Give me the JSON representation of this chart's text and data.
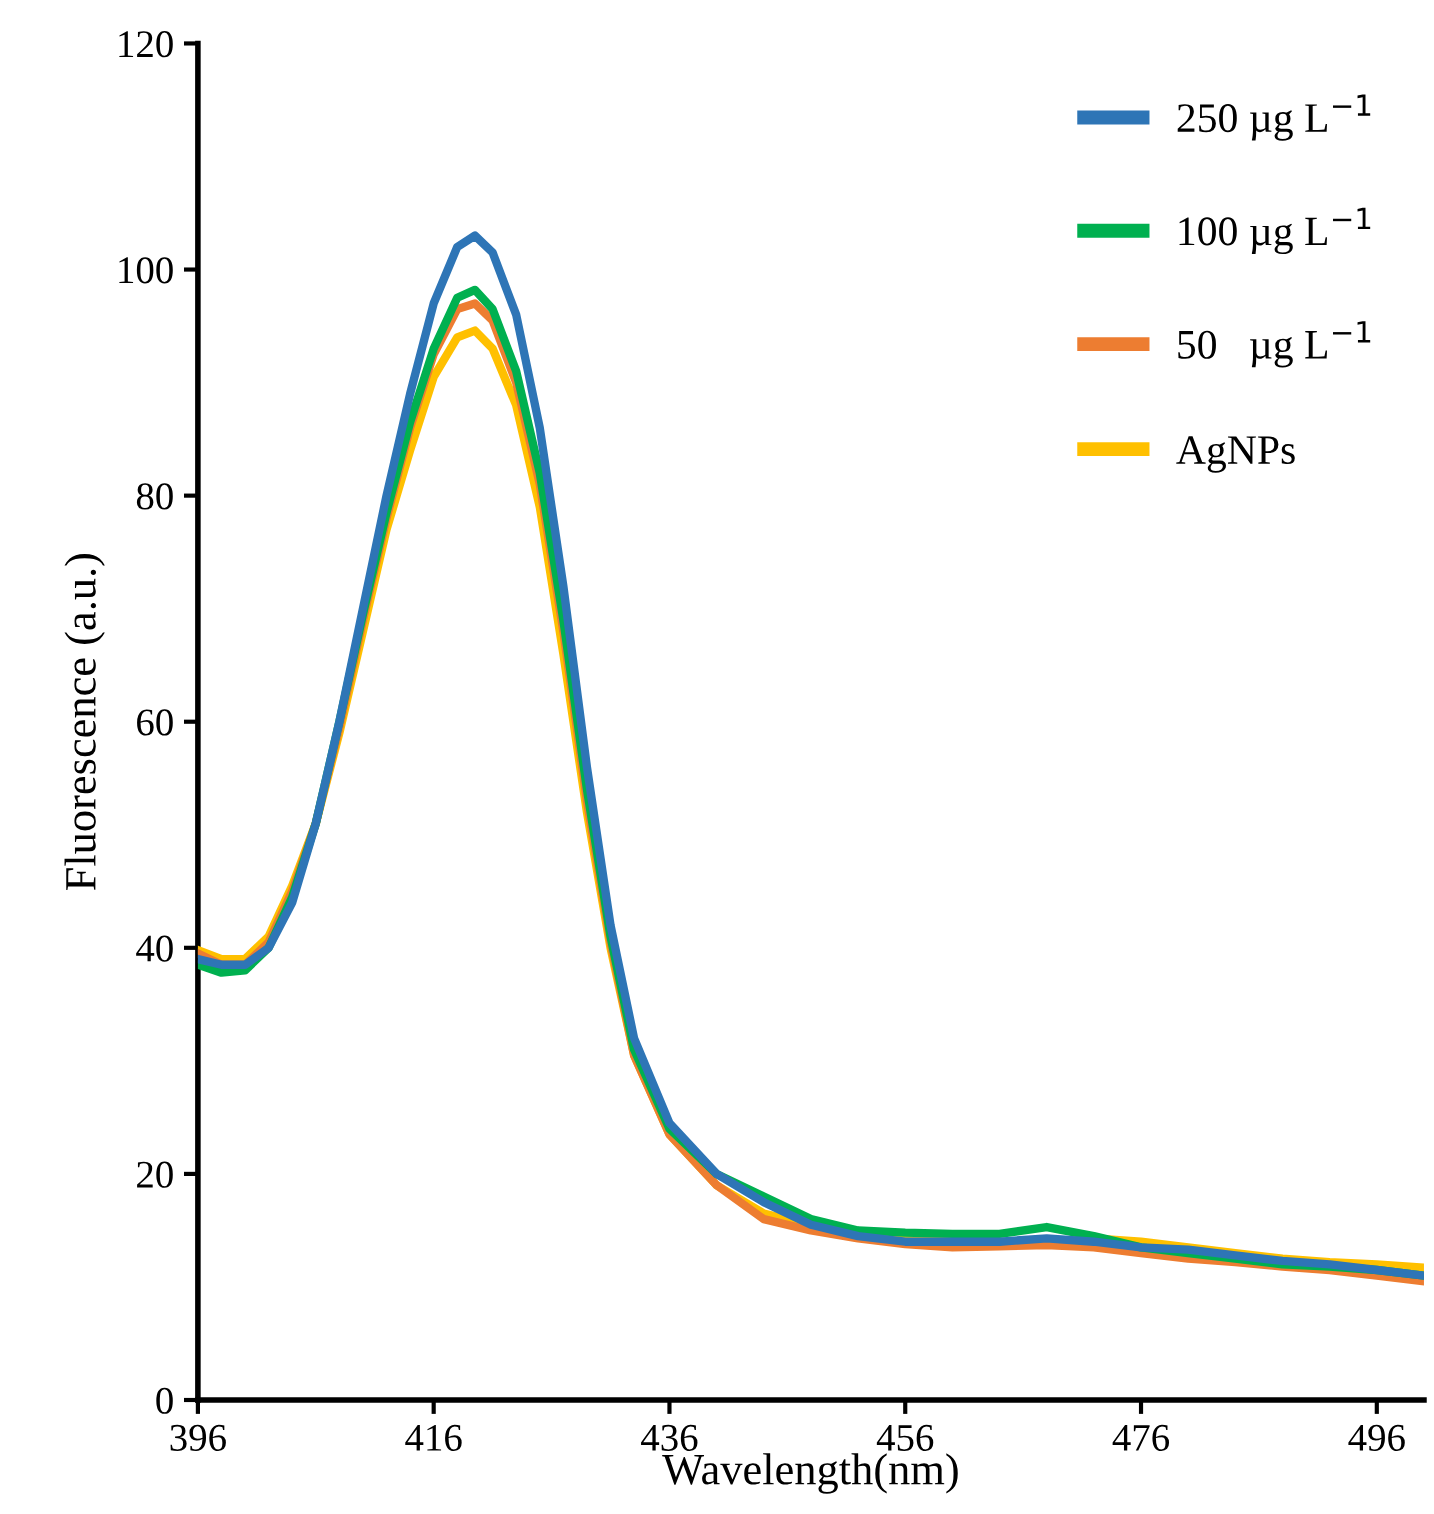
{
  "chart_data": {
    "type": "line",
    "xlabel": "Wavelength(nm)",
    "ylabel": "Fluorescence (a.u.)",
    "x": [
      396,
      398,
      400,
      402,
      404,
      406,
      408,
      410,
      412,
      414,
      416,
      418,
      419.5,
      421,
      423,
      425,
      427,
      429,
      431,
      433,
      436,
      440,
      444,
      448,
      452,
      456,
      460,
      464,
      468,
      472,
      476,
      480,
      484,
      488,
      492,
      496,
      500
    ],
    "series": [
      {
        "name": "250 µg L$^{−1}$",
        "color": "#2e75b6",
        "values": [
          39,
          38.5,
          38.5,
          40,
          44,
          51,
          60,
          70,
          80,
          89,
          97,
          102,
          103,
          101.5,
          96,
          86,
          72,
          56,
          42,
          32,
          24.5,
          20,
          17.5,
          15.5,
          14.5,
          14,
          14,
          14,
          14.3,
          14,
          13.5,
          13.3,
          12.8,
          12.3,
          12,
          11.5,
          11
        ]
      },
      {
        "name": "100 µg L$^{−1}$",
        "color": "#00b050",
        "values": [
          38.5,
          37.8,
          38,
          40,
          44.5,
          51,
          60,
          69.5,
          78.5,
          86.5,
          93,
          97.5,
          98.2,
          96.5,
          91,
          82,
          69,
          54,
          41,
          31,
          24,
          20,
          18,
          16,
          15,
          14.8,
          14.7,
          14.7,
          15.3,
          14.5,
          13.5,
          13,
          12.5,
          12,
          11.8,
          11.5,
          11
        ]
      },
      {
        "name": "50   µg L$^{−1}$",
        "color": "#ed7d31",
        "values": [
          39.5,
          38.5,
          38.5,
          40.5,
          45,
          51,
          59.5,
          69,
          78,
          86,
          92.5,
          96.5,
          97,
          95.5,
          90,
          81,
          68,
          53,
          40.5,
          30.5,
          23.5,
          19,
          16,
          15,
          14.3,
          13.8,
          13.5,
          13.6,
          13.7,
          13.5,
          13,
          12.5,
          12.2,
          11.8,
          11.5,
          11,
          10.5
        ]
      },
      {
        "name": "AgNPs",
        "color": "#ffc000",
        "values": [
          39.8,
          39,
          39,
          41,
          45.5,
          51,
          59,
          68,
          77,
          84,
          90.5,
          94,
          94.6,
          93,
          88,
          79,
          66,
          52,
          40,
          30.5,
          23.5,
          19,
          16.5,
          15.5,
          14.8,
          14.4,
          14.2,
          14,
          14,
          14.3,
          14,
          13.5,
          13,
          12.5,
          12.2,
          12,
          11.7
        ]
      }
    ],
    "xlim": [
      396,
      500
    ],
    "xticks": [
      396,
      416,
      436,
      456,
      476,
      496
    ],
    "ylim": [
      0,
      120
    ],
    "yticks": [
      0,
      20,
      40,
      60,
      80,
      100,
      120
    ],
    "grid": false,
    "legend": "top right",
    "marker": "none",
    "line_style": "solid"
  }
}
